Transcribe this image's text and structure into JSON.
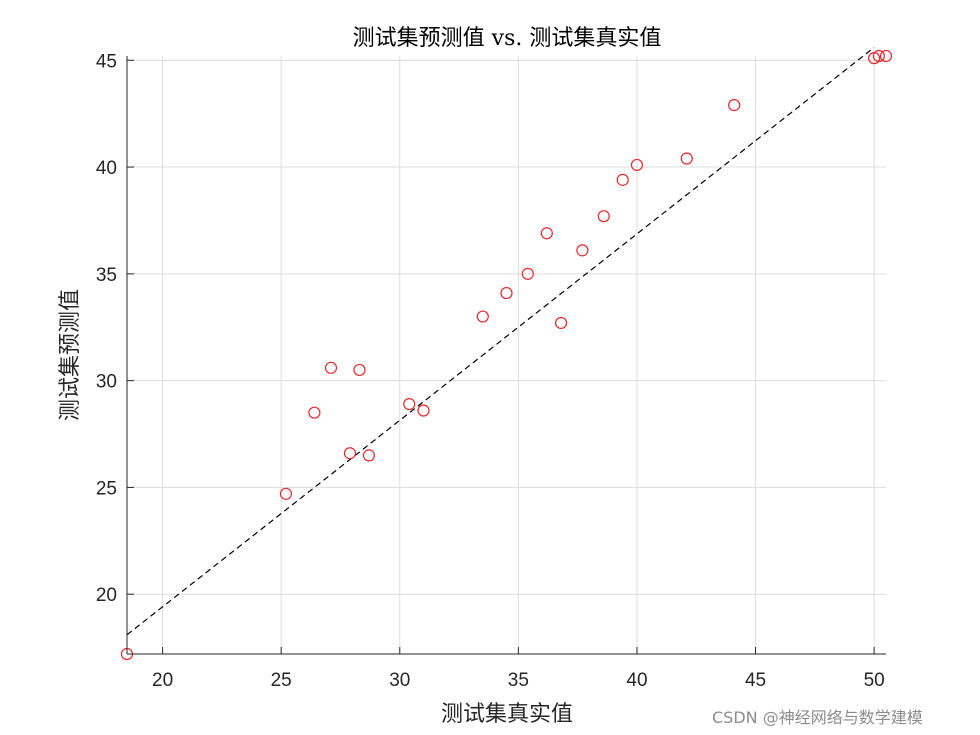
{
  "chart_data": {
    "type": "scatter",
    "title": "测试集预测值 vs. 测试集真实值",
    "xlabel": "测试集真实值",
    "ylabel": "测试集预测值",
    "xlim": [
      18.5,
      50.5
    ],
    "ylim": [
      17.2,
      45.2
    ],
    "xticks": [
      20,
      25,
      30,
      35,
      40,
      45,
      50
    ],
    "yticks": [
      20,
      25,
      30,
      35,
      40,
      45
    ],
    "grid": true,
    "marker": "open-circle",
    "marker_color": "#e8272b",
    "reference_line": {
      "style": "dashed",
      "color": "#000000",
      "from": [
        18.5,
        18.1
      ],
      "to": [
        50.0,
        45.6
      ]
    },
    "points": [
      {
        "x": 18.5,
        "y": 17.2
      },
      {
        "x": 25.2,
        "y": 24.7
      },
      {
        "x": 26.4,
        "y": 28.5
      },
      {
        "x": 27.1,
        "y": 30.6
      },
      {
        "x": 27.9,
        "y": 26.6
      },
      {
        "x": 28.3,
        "y": 30.5
      },
      {
        "x": 28.7,
        "y": 26.5
      },
      {
        "x": 30.4,
        "y": 28.9
      },
      {
        "x": 31.0,
        "y": 28.6
      },
      {
        "x": 33.5,
        "y": 33.0
      },
      {
        "x": 34.5,
        "y": 34.1
      },
      {
        "x": 35.4,
        "y": 35.0
      },
      {
        "x": 36.2,
        "y": 36.9
      },
      {
        "x": 36.8,
        "y": 32.7
      },
      {
        "x": 37.7,
        "y": 36.1
      },
      {
        "x": 38.6,
        "y": 37.7
      },
      {
        "x": 39.4,
        "y": 39.4
      },
      {
        "x": 40.0,
        "y": 40.1
      },
      {
        "x": 42.1,
        "y": 40.4
      },
      {
        "x": 44.1,
        "y": 42.9
      },
      {
        "x": 50.0,
        "y": 45.1
      },
      {
        "x": 50.2,
        "y": 45.2
      },
      {
        "x": 50.5,
        "y": 45.2
      }
    ]
  },
  "watermark": "CSDN @神经网络与数学建模"
}
